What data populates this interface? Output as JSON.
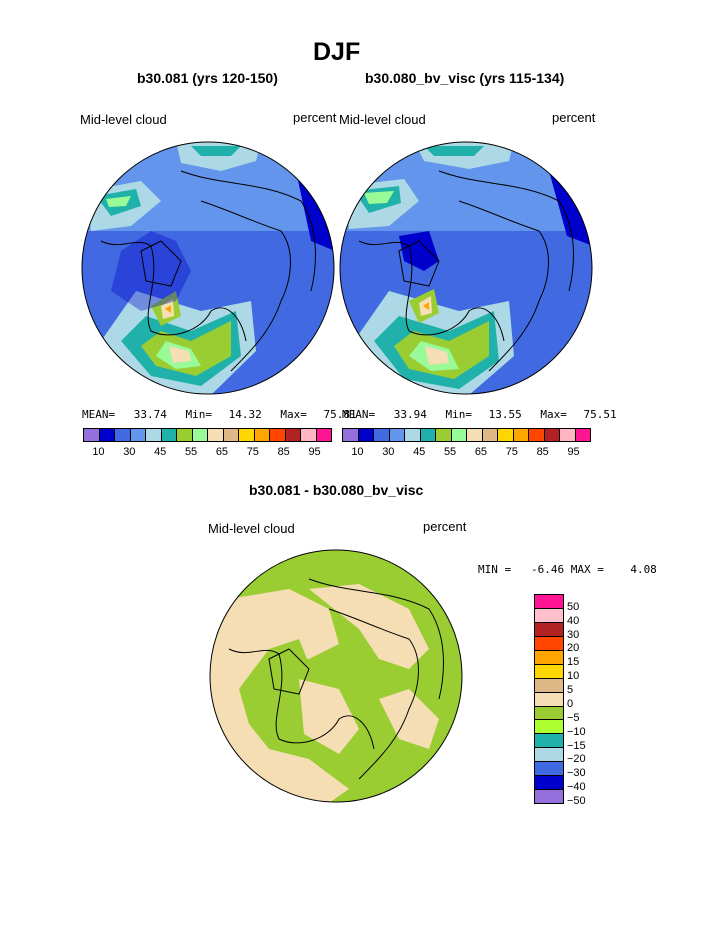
{
  "title": "DJF",
  "left_panel": {
    "run": "b30.081 (yrs 120-150)",
    "field": "Mid-level cloud",
    "units": "percent",
    "mean_label": "MEAN=",
    "mean": "33.74",
    "min_label": "Min=",
    "min": "14.32",
    "max_label": "Max=",
    "max": "75.81"
  },
  "right_panel": {
    "run": "b30.080_bv_visc (yrs 115-134)",
    "field": "Mid-level cloud",
    "units": "percent",
    "mean_label": "MEAN=",
    "mean": "33.94",
    "min_label": "Min=",
    "min": "13.55",
    "max_label": "Max=",
    "max": "75.51"
  },
  "colorbar_top": {
    "colors": [
      "#9370db",
      "#0000cd",
      "#4169e1",
      "#6495ed",
      "#add8e6",
      "#20b2aa",
      "#9acd32",
      "#98fb98",
      "#f5deb3",
      "#deb887",
      "#ffd700",
      "#ffa500",
      "#ff4500",
      "#b22222",
      "#ffb6c1",
      "#ff1493"
    ],
    "tick_labels": [
      "10",
      "30",
      "45",
      "55",
      "65",
      "75",
      "85",
      "95"
    ]
  },
  "diff_panel": {
    "title": "b30.081 - b30.080_bv_visc",
    "field": "Mid-level cloud",
    "units": "percent",
    "stats": "MIN =   -6.46 MAX =    4.08",
    "colors": [
      "#ff1493",
      "#ffc0cb",
      "#b22222",
      "#ff4500",
      "#ffa500",
      "#ffd700",
      "#deb887",
      "#f5deb3",
      "#9acd32",
      "#adff2f",
      "#20b2aa",
      "#add8e6",
      "#4169e1",
      "#0000cd",
      "#9370db"
    ],
    "tick_labels": [
      "50",
      "40",
      "30",
      "20",
      "15",
      "10",
      "5",
      "0",
      "−5",
      "−10",
      "−15",
      "−20",
      "−30",
      "−40",
      "−50"
    ]
  }
}
